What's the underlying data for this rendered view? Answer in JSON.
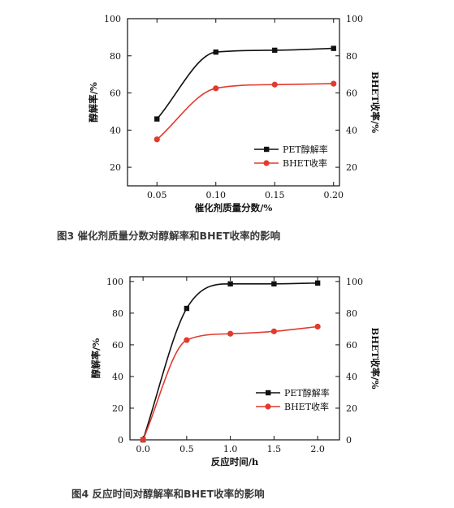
{
  "chart_data": [
    {
      "type": "line",
      "xlabel": "催化剂质量分数/%",
      "ylabel": "醇解率/%",
      "y2label": "BHET收率/%",
      "x_ticks": [
        "0.05",
        "0.10",
        "0.15",
        "0.20"
      ],
      "y_ticks": [
        "20",
        "40",
        "60",
        "80",
        "100"
      ],
      "y2_ticks": [
        "20",
        "40",
        "60",
        "80",
        "100"
      ],
      "xlim": [
        0.025,
        0.205
      ],
      "ylim": [
        10,
        100
      ],
      "legend_position": "lower-right",
      "series": [
        {
          "name": "PET醇解率",
          "color": "#111111",
          "marker": "square",
          "x": [
            0.05,
            0.1,
            0.15,
            0.2
          ],
          "y": [
            46,
            82,
            83,
            84
          ]
        },
        {
          "name": "BHET收率",
          "color": "#e23a2e",
          "marker": "circle",
          "x": [
            0.05,
            0.1,
            0.15,
            0.2
          ],
          "y": [
            35,
            62.5,
            64.5,
            65
          ]
        }
      ],
      "caption": "图3 催化剂质量分数对醇解率和BHET收率的影响"
    },
    {
      "type": "line",
      "xlabel": "反应时间/h",
      "ylabel": "醇解率/%",
      "y2label": "BHET收率/%",
      "x_ticks": [
        "0.0",
        "0.5",
        "1.0",
        "1.5",
        "2.0"
      ],
      "y_ticks": [
        "0",
        "20",
        "40",
        "60",
        "80",
        "100"
      ],
      "y2_ticks": [
        "0",
        "20",
        "40",
        "60",
        "80",
        "100"
      ],
      "xlim": [
        -0.15,
        2.25
      ],
      "ylim": [
        0,
        103
      ],
      "legend_position": "lower-right",
      "series": [
        {
          "name": "PET醇解率",
          "color": "#111111",
          "marker": "square",
          "x": [
            0.0,
            0.5,
            1.0,
            1.5,
            2.0
          ],
          "y": [
            0,
            83,
            98.5,
            98.5,
            99
          ]
        },
        {
          "name": "BHET收率",
          "color": "#e23a2e",
          "marker": "circle",
          "x": [
            0.0,
            0.5,
            1.0,
            1.5,
            2.0
          ],
          "y": [
            0,
            63,
            67,
            68.5,
            71.5
          ]
        }
      ],
      "caption": "图4 反应时间对醇解率和BHET收率的影响"
    }
  ]
}
